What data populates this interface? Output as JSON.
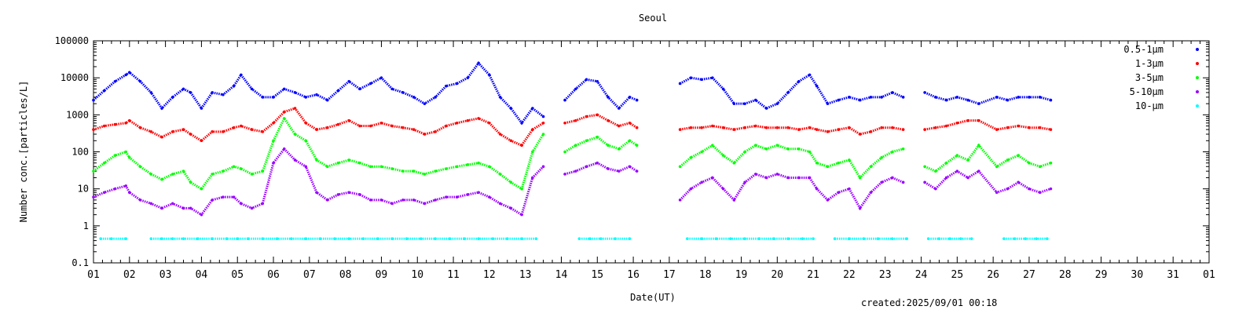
{
  "chart_data": {
    "type": "scatter",
    "title": "Seoul",
    "xlabel": "Date(UT)",
    "ylabel": "Number conc.[particles/L]",
    "footer": "created:2025/09/01 00:18",
    "y_scale": "log",
    "ylim": [
      0.1,
      100000
    ],
    "xlim": [
      1,
      32
    ],
    "x_ticks": [
      "01",
      "02",
      "03",
      "04",
      "05",
      "06",
      "07",
      "08",
      "09",
      "10",
      "11",
      "12",
      "13",
      "14",
      "15",
      "16",
      "17",
      "18",
      "19",
      "20",
      "21",
      "22",
      "23",
      "24",
      "25",
      "26",
      "27",
      "28",
      "29",
      "30",
      "31",
      "01"
    ],
    "y_ticks": [
      "0.1",
      "1",
      "10",
      "100",
      "1000",
      "10000",
      "100000"
    ],
    "legend_placement": "top-right",
    "grid": false,
    "series": [
      {
        "name": "0.5-1μm",
        "color": "#0000ff",
        "x": [
          1.0,
          1.3,
          1.6,
          1.9,
          2.0,
          2.3,
          2.6,
          2.9,
          3.2,
          3.5,
          3.7,
          4.0,
          4.3,
          4.6,
          4.9,
          5.1,
          5.4,
          5.7,
          6.0,
          6.3,
          6.6,
          6.9,
          7.2,
          7.5,
          7.8,
          8.1,
          8.4,
          8.7,
          9.0,
          9.3,
          9.6,
          9.9,
          10.2,
          10.5,
          10.8,
          11.1,
          11.4,
          11.7,
          12.0,
          12.3,
          12.6,
          12.9,
          13.2,
          13.5,
          14.1,
          14.4,
          14.7,
          15.0,
          15.3,
          15.6,
          15.9,
          16.1,
          17.3,
          17.6,
          17.9,
          18.2,
          18.5,
          18.8,
          19.1,
          19.4,
          19.7,
          20.0,
          20.3,
          20.6,
          20.9,
          21.1,
          21.4,
          21.7,
          22.0,
          22.3,
          22.6,
          22.9,
          23.2,
          23.5,
          24.1,
          24.4,
          24.7,
          25.0,
          25.3,
          25.6,
          26.1,
          26.4,
          26.7,
          27.0,
          27.3,
          27.6
        ],
        "y": [
          2500,
          4500,
          8000,
          12000,
          14000,
          8000,
          4000,
          1500,
          3000,
          5000,
          4000,
          1500,
          4000,
          3500,
          6000,
          12000,
          5000,
          3000,
          3000,
          5000,
          4000,
          3000,
          3500,
          2500,
          4500,
          8000,
          5000,
          7000,
          10000,
          5000,
          4000,
          3000,
          2000,
          3000,
          6000,
          7000,
          10000,
          25000,
          12000,
          3000,
          1500,
          600,
          1500,
          900,
          2500,
          5000,
          9000,
          8000,
          3000,
          1500,
          3000,
          2500,
          7000,
          10000,
          9000,
          10000,
          5000,
          2000,
          2000,
          2500,
          1500,
          2000,
          4000,
          8000,
          12000,
          6000,
          2000,
          2500,
          3000,
          2500,
          3000,
          3000,
          4000,
          3000,
          4000,
          3000,
          2500,
          3000,
          2500,
          2000,
          3000,
          2500,
          3000,
          3000,
          3000,
          2500
        ]
      },
      {
        "name": "1-3μm",
        "color": "#ff0000",
        "x": [
          1.0,
          1.3,
          1.6,
          1.9,
          2.0,
          2.3,
          2.6,
          2.9,
          3.2,
          3.5,
          3.7,
          4.0,
          4.3,
          4.6,
          4.9,
          5.1,
          5.4,
          5.7,
          6.0,
          6.3,
          6.6,
          6.9,
          7.2,
          7.5,
          7.8,
          8.1,
          8.4,
          8.7,
          9.0,
          9.3,
          9.6,
          9.9,
          10.2,
          10.5,
          10.8,
          11.1,
          11.4,
          11.7,
          12.0,
          12.3,
          12.6,
          12.9,
          13.2,
          13.5,
          14.1,
          14.4,
          14.7,
          15.0,
          15.3,
          15.6,
          15.9,
          16.1,
          17.3,
          17.6,
          17.9,
          18.2,
          18.5,
          18.8,
          19.1,
          19.4,
          19.7,
          20.0,
          20.3,
          20.6,
          20.9,
          21.1,
          21.4,
          21.7,
          22.0,
          22.3,
          22.6,
          22.9,
          23.2,
          23.5,
          24.1,
          24.4,
          24.7,
          25.0,
          25.3,
          25.6,
          26.1,
          26.4,
          26.7,
          27.0,
          27.3,
          27.6
        ],
        "y": [
          400,
          500,
          550,
          600,
          700,
          450,
          350,
          250,
          350,
          400,
          300,
          200,
          350,
          350,
          450,
          500,
          400,
          350,
          600,
          1200,
          1500,
          600,
          400,
          450,
          550,
          700,
          500,
          500,
          600,
          500,
          450,
          400,
          300,
          350,
          500,
          600,
          700,
          800,
          600,
          300,
          200,
          150,
          400,
          600,
          600,
          700,
          900,
          1000,
          700,
          500,
          600,
          450,
          400,
          450,
          450,
          500,
          450,
          400,
          450,
          500,
          450,
          450,
          450,
          400,
          450,
          400,
          350,
          400,
          450,
          300,
          350,
          450,
          450,
          400,
          400,
          450,
          500,
          600,
          700,
          700,
          400,
          450,
          500,
          450,
          450,
          400
        ]
      },
      {
        "name": "3-5μm",
        "color": "#00ff00",
        "x": [
          1.0,
          1.3,
          1.6,
          1.9,
          2.0,
          2.3,
          2.6,
          2.9,
          3.2,
          3.5,
          3.7,
          4.0,
          4.3,
          4.6,
          4.9,
          5.1,
          5.4,
          5.7,
          6.0,
          6.3,
          6.6,
          6.9,
          7.2,
          7.5,
          7.8,
          8.1,
          8.4,
          8.7,
          9.0,
          9.3,
          9.6,
          9.9,
          10.2,
          10.5,
          10.8,
          11.1,
          11.4,
          11.7,
          12.0,
          12.3,
          12.6,
          12.9,
          13.2,
          13.5,
          14.1,
          14.4,
          14.7,
          15.0,
          15.3,
          15.6,
          15.9,
          16.1,
          17.3,
          17.6,
          17.9,
          18.2,
          18.5,
          18.8,
          19.1,
          19.4,
          19.7,
          20.0,
          20.3,
          20.6,
          20.9,
          21.1,
          21.4,
          21.7,
          22.0,
          22.3,
          22.6,
          22.9,
          23.2,
          23.5,
          24.1,
          24.4,
          24.7,
          25.0,
          25.3,
          25.6,
          26.1,
          26.4,
          26.7,
          27.0,
          27.3,
          27.6
        ],
        "y": [
          30,
          50,
          80,
          100,
          70,
          40,
          25,
          18,
          25,
          30,
          15,
          10,
          25,
          30,
          40,
          35,
          25,
          30,
          200,
          800,
          300,
          200,
          60,
          40,
          50,
          60,
          50,
          40,
          40,
          35,
          30,
          30,
          25,
          30,
          35,
          40,
          45,
          50,
          40,
          25,
          15,
          10,
          100,
          300,
          100,
          150,
          200,
          250,
          150,
          120,
          200,
          150,
          40,
          70,
          100,
          150,
          80,
          50,
          100,
          150,
          120,
          150,
          120,
          120,
          100,
          50,
          40,
          50,
          60,
          20,
          40,
          70,
          100,
          120,
          40,
          30,
          50,
          80,
          60,
          150,
          40,
          60,
          80,
          50,
          40,
          50
        ]
      },
      {
        "name": "5-10μm",
        "color": "#9900ff",
        "x": [
          1.0,
          1.3,
          1.6,
          1.9,
          2.0,
          2.3,
          2.6,
          2.9,
          3.2,
          3.5,
          3.7,
          4.0,
          4.3,
          4.6,
          4.9,
          5.1,
          5.4,
          5.7,
          6.0,
          6.3,
          6.6,
          6.9,
          7.2,
          7.5,
          7.8,
          8.1,
          8.4,
          8.7,
          9.0,
          9.3,
          9.6,
          9.9,
          10.2,
          10.5,
          10.8,
          11.1,
          11.4,
          11.7,
          12.0,
          12.3,
          12.6,
          12.9,
          13.2,
          13.5,
          14.1,
          14.4,
          14.7,
          15.0,
          15.3,
          15.6,
          15.9,
          16.1,
          17.3,
          17.6,
          17.9,
          18.2,
          18.5,
          18.8,
          19.1,
          19.4,
          19.7,
          20.0,
          20.3,
          20.6,
          20.9,
          21.1,
          21.4,
          21.7,
          22.0,
          22.3,
          22.6,
          22.9,
          23.2,
          23.5,
          24.1,
          24.4,
          24.7,
          25.0,
          25.3,
          25.6,
          26.1,
          26.4,
          26.7,
          27.0,
          27.3,
          27.6
        ],
        "y": [
          6,
          8,
          10,
          12,
          8,
          5,
          4,
          3,
          4,
          3,
          3,
          2,
          5,
          6,
          6,
          4,
          3,
          4,
          50,
          120,
          60,
          40,
          8,
          5,
          7,
          8,
          7,
          5,
          5,
          4,
          5,
          5,
          4,
          5,
          6,
          6,
          7,
          8,
          6,
          4,
          3,
          2,
          20,
          40,
          25,
          30,
          40,
          50,
          35,
          30,
          40,
          30,
          5,
          10,
          15,
          20,
          10,
          5,
          15,
          25,
          20,
          25,
          20,
          20,
          20,
          10,
          5,
          8,
          10,
          3,
          8,
          15,
          20,
          15,
          15,
          10,
          20,
          30,
          20,
          30,
          8,
          10,
          15,
          10,
          8,
          10
        ]
      },
      {
        "name": "10-μm",
        "color": "#00ffff",
        "x": [
          1.2,
          1.5,
          1.9,
          2.6,
          2.9,
          3.2,
          3.5,
          3.9,
          4.3,
          4.7,
          5.0,
          5.3,
          5.7,
          6.1,
          6.5,
          6.9,
          7.3,
          7.7,
          8.1,
          8.5,
          8.9,
          9.3,
          9.7,
          10.1,
          10.5,
          10.9,
          11.3,
          11.7,
          12.1,
          12.5,
          12.9,
          13.3,
          14.5,
          14.8,
          15.1,
          15.5,
          15.9,
          17.5,
          17.9,
          18.3,
          18.7,
          19.1,
          19.5,
          19.9,
          20.3,
          20.7,
          21.0,
          21.6,
          22.0,
          22.4,
          22.8,
          23.2,
          23.6,
          24.2,
          24.5,
          24.8,
          25.1,
          25.4,
          26.3,
          26.6,
          26.9,
          27.2,
          27.5
        ],
        "y": [
          0.45,
          0.45,
          0.45,
          0.45,
          0.45,
          0.45,
          0.45,
          0.45,
          0.45,
          0.45,
          0.45,
          0.45,
          0.45,
          0.45,
          0.45,
          0.45,
          0.45,
          0.45,
          0.45,
          0.45,
          0.45,
          0.45,
          0.45,
          0.45,
          0.45,
          0.45,
          0.45,
          0.45,
          0.45,
          0.45,
          0.45,
          0.45,
          0.45,
          0.45,
          0.45,
          0.45,
          0.45,
          0.45,
          0.45,
          0.45,
          0.45,
          0.45,
          0.45,
          0.45,
          0.45,
          0.45,
          0.45,
          0.45,
          0.45,
          0.45,
          0.45,
          0.45,
          0.45,
          0.45,
          0.45,
          0.45,
          0.45,
          0.45,
          0.45,
          0.45,
          0.45,
          0.45,
          0.45
        ]
      }
    ]
  }
}
